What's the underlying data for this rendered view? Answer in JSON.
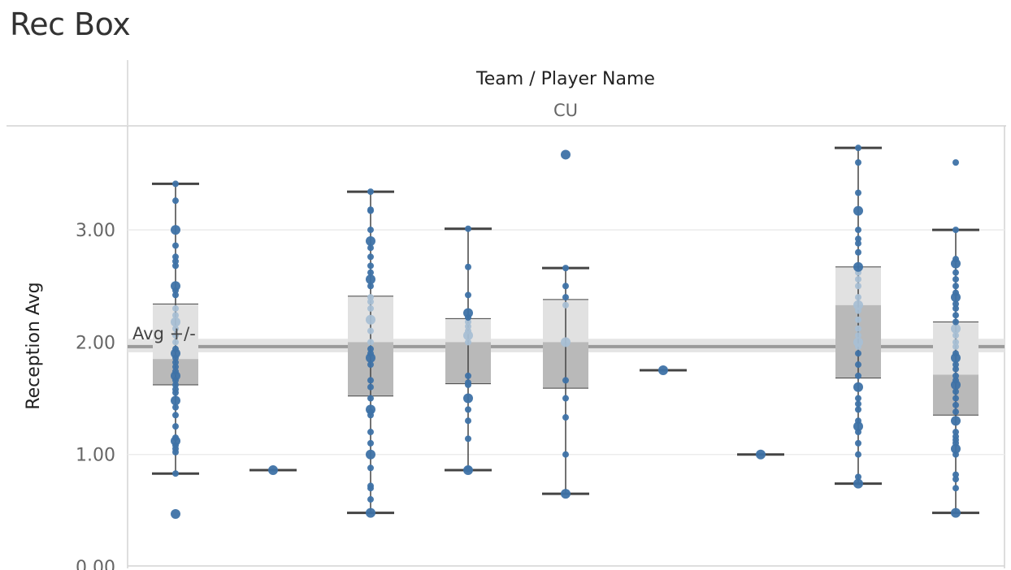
{
  "title": "Rec Box",
  "header": {
    "title": "Team / Player Name",
    "column_label": "CU"
  },
  "colors": {
    "point": "#3e72a6",
    "point_light": "#a8bfd4",
    "box_upper": "#e1e1e1",
    "box_lower": "#b9b9b9",
    "whisker": "#444444",
    "ref_line": "#9a9a9a",
    "ref_band": "#e4e4e4",
    "grid": "#ececec"
  },
  "chart_data": {
    "type": "box",
    "ylabel": "Reception Avg",
    "ylim": [
      0,
      3.85
    ],
    "yticks": [
      {
        "value": 0,
        "label": "0.00"
      },
      {
        "value": 1,
        "label": "1.00"
      },
      {
        "value": 2,
        "label": "2.00"
      },
      {
        "value": 3,
        "label": "3.00"
      }
    ],
    "reference_line": {
      "label": "Avg +/-",
      "value": 1.96,
      "band": [
        1.91,
        2.03
      ]
    },
    "boxes": [
      {
        "min": 0.83,
        "q1": 1.62,
        "median": 1.85,
        "q3": 2.34,
        "max": 3.41,
        "points": [
          0.47,
          0.83,
          1.02,
          1.05,
          1.08,
          1.12,
          1.15,
          1.25,
          1.35,
          1.42,
          1.48,
          1.55,
          1.58,
          1.62,
          1.66,
          1.7,
          1.74,
          1.78,
          1.82,
          1.86,
          1.9,
          1.94,
          2.0,
          2.06,
          2.12,
          2.18,
          2.24,
          2.3,
          2.42,
          2.46,
          2.5,
          2.68,
          2.72,
          2.76,
          2.86,
          3.0,
          3.26,
          3.41
        ]
      },
      {
        "min": 0.86,
        "q1": 0.86,
        "median": 0.86,
        "q3": 0.86,
        "max": 0.86,
        "points": [
          0.86
        ]
      },
      {
        "min": 0.48,
        "q1": 1.52,
        "median": 2.0,
        "q3": 2.41,
        "max": 3.34,
        "points": [
          0.48,
          0.6,
          0.7,
          0.72,
          0.88,
          1.0,
          1.1,
          1.2,
          1.35,
          1.38,
          1.4,
          1.5,
          1.6,
          1.66,
          1.8,
          1.86,
          1.9,
          1.94,
          2.0,
          2.1,
          2.2,
          2.3,
          2.36,
          2.4,
          2.5,
          2.56,
          2.62,
          2.68,
          2.76,
          2.84,
          2.9,
          3.0,
          3.17,
          3.18,
          3.34
        ]
      },
      {
        "min": 0.86,
        "q1": 1.63,
        "median": 2.0,
        "q3": 2.21,
        "max": 3.01,
        "points": [
          0.86,
          0.87,
          1.14,
          1.3,
          1.4,
          1.5,
          1.62,
          1.64,
          1.7,
          2.0,
          2.06,
          2.1,
          2.14,
          2.18,
          2.22,
          2.26,
          2.42,
          2.67,
          3.01
        ]
      },
      {
        "min": 0.65,
        "q1": 1.59,
        "median": 2.0,
        "q3": 2.38,
        "max": 2.66,
        "points": [
          0.65,
          1.0,
          1.33,
          1.5,
          1.66,
          2.0,
          2.33,
          2.4,
          2.5,
          2.66,
          3.67
        ]
      },
      {
        "min": 1.75,
        "q1": 1.75,
        "median": 1.75,
        "q3": 1.75,
        "max": 1.75,
        "points": [
          1.75
        ]
      },
      {
        "min": 1.0,
        "q1": 1.0,
        "median": 1.0,
        "q3": 1.0,
        "max": 1.0,
        "points": [
          1.0
        ]
      },
      {
        "min": 0.74,
        "q1": 1.68,
        "median": 2.33,
        "q3": 2.67,
        "max": 3.73,
        "points": [
          0.74,
          0.8,
          1.0,
          1.1,
          1.2,
          1.25,
          1.3,
          1.4,
          1.45,
          1.5,
          1.6,
          1.7,
          1.8,
          1.9,
          1.96,
          2.0,
          2.06,
          2.12,
          2.2,
          2.28,
          2.33,
          2.4,
          2.5,
          2.56,
          2.62,
          2.67,
          2.8,
          2.88,
          2.92,
          3.0,
          3.17,
          3.33,
          3.6,
          3.73
        ]
      },
      {
        "min": 0.48,
        "q1": 1.35,
        "median": 1.71,
        "q3": 2.18,
        "max": 3.0,
        "points": [
          0.48,
          0.7,
          0.78,
          0.82,
          1.0,
          1.05,
          1.1,
          1.13,
          1.16,
          1.2,
          1.3,
          1.38,
          1.44,
          1.5,
          1.56,
          1.62,
          1.66,
          1.7,
          1.76,
          1.8,
          1.86,
          1.9,
          1.96,
          2.0,
          2.06,
          2.12,
          2.18,
          2.24,
          2.3,
          2.34,
          2.4,
          2.44,
          2.5,
          2.56,
          2.62,
          2.7,
          2.74,
          3.0,
          3.6
        ]
      }
    ]
  }
}
